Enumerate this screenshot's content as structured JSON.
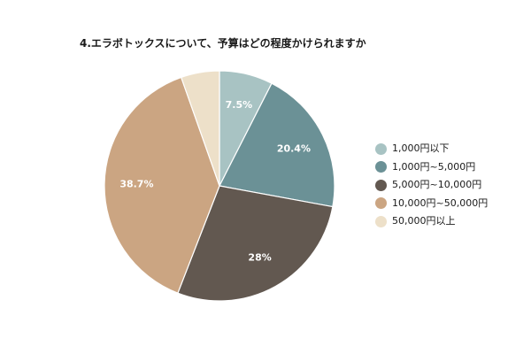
{
  "chart_data": {
    "type": "pie",
    "title": "4.エラボトックスについて、予算はどの程度かけられますか",
    "slices": [
      {
        "label": "1,000円以下",
        "value": 7.5,
        "display": "7.5%",
        "color": "#a8c3c3"
      },
      {
        "label": "1,000円~5,000円",
        "value": 20.4,
        "display": "20.4%",
        "color": "#6b9196"
      },
      {
        "label": "5,000円~10,000円",
        "value": 28,
        "display": "28%",
        "color": "#625850"
      },
      {
        "label": "10,000円~50,000円",
        "value": 38.7,
        "display": "38.7%",
        "color": "#cba582"
      },
      {
        "label": "50,000円以上",
        "value": 5.4,
        "display": "",
        "color": "#ede0c9"
      }
    ],
    "legend_position": "right",
    "start_angle": "12 o'clock",
    "direction": "clockwise"
  }
}
